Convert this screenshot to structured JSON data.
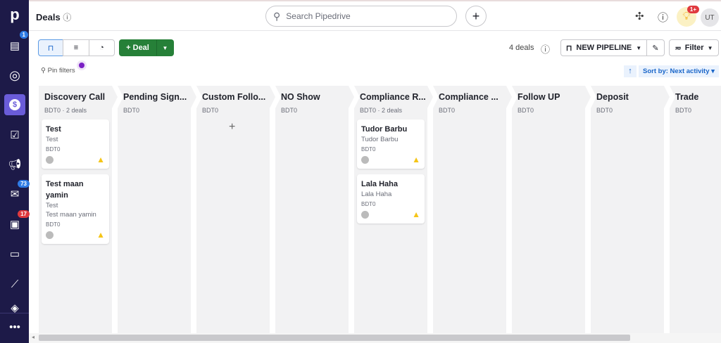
{
  "sidebar": {
    "items": [
      {
        "icon": "pipedrive-logo"
      },
      {
        "icon": "leads-inbox-icon",
        "badge": "1"
      },
      {
        "icon": "target-icon"
      },
      {
        "icon": "deals-icon",
        "active": true
      },
      {
        "icon": "activities-icon"
      },
      {
        "icon": "campaigns-icon"
      },
      {
        "icon": "mail-icon",
        "badge": "73"
      },
      {
        "icon": "calendar-icon",
        "badge": "17"
      },
      {
        "icon": "contacts-icon"
      },
      {
        "icon": "insights-icon"
      },
      {
        "icon": "products-icon"
      },
      {
        "icon": "more-icon"
      }
    ]
  },
  "header": {
    "title": "Deals",
    "search_placeholder": "Search Pipedrive",
    "tips_badge": "1+",
    "avatar": "UT"
  },
  "toolbar": {
    "add_deal": "+ Deal",
    "deals_count": "4 deals",
    "pipeline": "NEW PIPELINE",
    "filter": "Filter",
    "pin_filters": "Pin filters",
    "sort": "Sort by: Next activity"
  },
  "stages": [
    {
      "name": "Discovery Call",
      "sub": "BDT0 · 2 deals",
      "deals": [
        {
          "title": "Test",
          "lines": [
            "Test"
          ],
          "value": "BDT0"
        },
        {
          "title": "Test maan yamin",
          "lines": [
            "Test",
            "Test maan yamin"
          ],
          "value": "BDT0"
        }
      ]
    },
    {
      "name": "Pending Sign...",
      "sub": "BDT0",
      "deals": []
    },
    {
      "name": "Custom Follo...",
      "sub": "BDT0",
      "deals": []
    },
    {
      "name": "NO Show",
      "sub": "BDT0",
      "deals": []
    },
    {
      "name": "Compliance R...",
      "sub": "BDT0 · 2 deals",
      "deals": [
        {
          "title": "Tudor Barbu",
          "lines": [
            "Tudor Barbu"
          ],
          "value": "BDT0"
        },
        {
          "title": "Lala Haha",
          "lines": [
            "Lala Haha"
          ],
          "value": "BDT0"
        }
      ]
    },
    {
      "name": "Compliance ...",
      "sub": "BDT0",
      "deals": []
    },
    {
      "name": "Follow UP",
      "sub": "BDT0",
      "deals": []
    },
    {
      "name": "Deposit",
      "sub": "BDT0",
      "deals": []
    },
    {
      "name": "Trade",
      "sub": "BDT0",
      "deals": []
    }
  ],
  "colors": {
    "sidebar": "#1d1a48",
    "accent": "#6a5cd9",
    "deal_button": "#268038",
    "link": "#1a66c9"
  }
}
